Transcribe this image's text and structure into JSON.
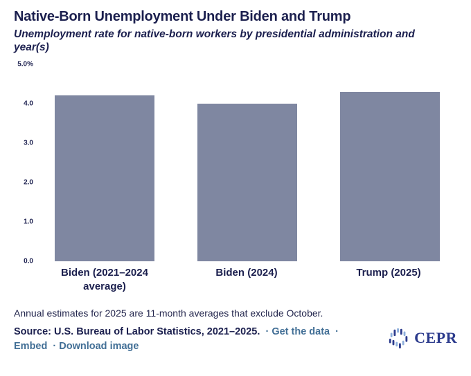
{
  "header": {
    "title": "Native-Born Unemployment Under Biden and Trump",
    "subtitle": "Unemployment rate for native-born workers by presidential administration and year(s)"
  },
  "chart_data": {
    "type": "bar",
    "categories": [
      "Biden (2021–2024 average)",
      "Biden (2024)",
      "Trump (2025)"
    ],
    "values": [
      4.2,
      4.0,
      4.3
    ],
    "title": "Native-Born Unemployment Under Biden and Trump",
    "subtitle": "Unemployment rate for native-born workers by presidential administration and year(s)",
    "xlabel": "",
    "ylabel": "",
    "ylim": [
      0,
      5
    ],
    "yticks": [
      "5.0%",
      "4.0",
      "3.0",
      "2.0",
      "1.0",
      "0.0"
    ],
    "grid": false,
    "legend": false,
    "bar_color": "#7f87a1"
  },
  "footer": {
    "note": "Annual estimates for 2025 are 11-month averages that exclude October.",
    "source": "Source: U.S. Bureau of Labor Statistics, 2021–2025.",
    "separator": "·",
    "links": [
      "Get the data",
      "Embed",
      "Download image"
    ],
    "logo_text": "CEPR"
  },
  "colors": {
    "navy": "#1b1f4e",
    "note_text": "#23264d",
    "bar": "#7f87a1",
    "link": "#426f96",
    "logo_dark_blue": "#2b3a8c",
    "logo_light_blue": "#8fb0dc"
  }
}
